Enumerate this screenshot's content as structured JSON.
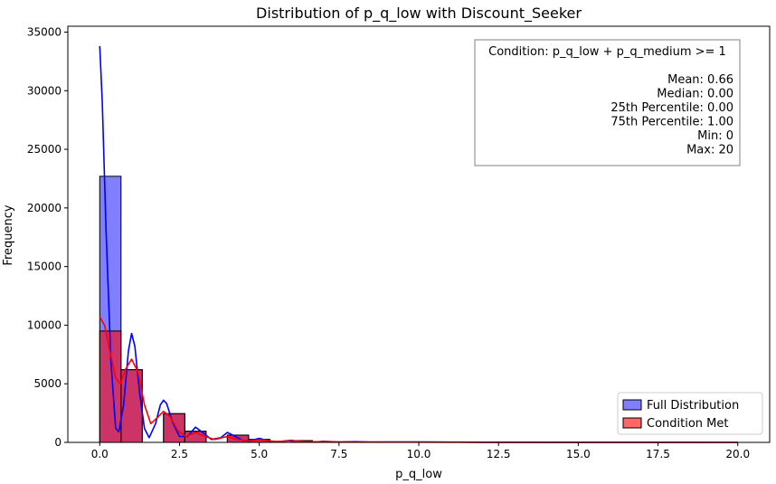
{
  "chart_data": {
    "type": "bar",
    "title": "Distribution of p_q_low with Discount_Seeker",
    "xlabel": "p_q_low",
    "ylabel": "Frequency",
    "xlim": [
      -1.0,
      21.0
    ],
    "ylim": [
      0,
      35500
    ],
    "xticks": [
      0.0,
      2.5,
      5.0,
      7.5,
      10.0,
      12.5,
      15.0,
      17.5,
      20.0
    ],
    "xtick_labels": [
      "0.0",
      "2.5",
      "5.0",
      "7.5",
      "10.0",
      "12.5",
      "15.0",
      "17.5",
      "20.0"
    ],
    "yticks": [
      0,
      5000,
      10000,
      15000,
      20000,
      25000,
      30000,
      35000
    ],
    "ytick_labels": [
      "0",
      "5000",
      "10000",
      "15000",
      "20000",
      "25000",
      "30000",
      "35000"
    ],
    "bin_edges": [
      0.0,
      0.667,
      1.333,
      2.0,
      2.667,
      3.333,
      4.0,
      4.667,
      5.333,
      6.0,
      6.667,
      7.333,
      8.0,
      8.667,
      9.333,
      10.0,
      10.667,
      11.333,
      12.0,
      12.667,
      13.333,
      14.0,
      14.667,
      15.333,
      16.0,
      16.667,
      17.333,
      18.0,
      18.667,
      19.333,
      20.0
    ],
    "series": [
      {
        "name": "Full Distribution",
        "color": "#0000ff",
        "values": [
          22700,
          6200,
          0,
          2450,
          950,
          0,
          620,
          250,
          0,
          150,
          60,
          0,
          40,
          20,
          0,
          15,
          10,
          0,
          8,
          5,
          0,
          4,
          3,
          0,
          2,
          2,
          0,
          1,
          1,
          2
        ],
        "kde": [
          [
            0.0,
            33800
          ],
          [
            0.08,
            29000
          ],
          [
            0.2,
            18000
          ],
          [
            0.35,
            7000
          ],
          [
            0.5,
            1200
          ],
          [
            0.6,
            900
          ],
          [
            0.75,
            3200
          ],
          [
            0.9,
            7800
          ],
          [
            1.0,
            9300
          ],
          [
            1.1,
            8200
          ],
          [
            1.25,
            4200
          ],
          [
            1.4,
            1200
          ],
          [
            1.55,
            400
          ],
          [
            1.75,
            1600
          ],
          [
            1.9,
            3200
          ],
          [
            2.0,
            3600
          ],
          [
            2.1,
            3300
          ],
          [
            2.3,
            1600
          ],
          [
            2.5,
            500
          ],
          [
            2.75,
            500
          ],
          [
            3.0,
            1300
          ],
          [
            3.2,
            900
          ],
          [
            3.5,
            250
          ],
          [
            3.8,
            400
          ],
          [
            4.0,
            850
          ],
          [
            4.25,
            500
          ],
          [
            4.5,
            150
          ],
          [
            4.8,
            200
          ],
          [
            5.0,
            350
          ],
          [
            5.3,
            120
          ],
          [
            5.6,
            60
          ],
          [
            6.0,
            180
          ],
          [
            6.3,
            60
          ],
          [
            6.8,
            30
          ],
          [
            7.0,
            90
          ],
          [
            7.5,
            30
          ],
          [
            8.0,
            60
          ],
          [
            8.5,
            20
          ],
          [
            9.0,
            40
          ],
          [
            10.0,
            30
          ],
          [
            11.0,
            20
          ],
          [
            12.0,
            15
          ],
          [
            13.0,
            12
          ],
          [
            14.0,
            10
          ],
          [
            15.0,
            8
          ],
          [
            16.0,
            6
          ],
          [
            17.0,
            5
          ],
          [
            18.0,
            4
          ],
          [
            19.0,
            3
          ],
          [
            20.0,
            3
          ]
        ]
      },
      {
        "name": "Condition Met",
        "color": "#ff0000",
        "values": [
          9500,
          6200,
          0,
          2450,
          950,
          0,
          620,
          250,
          0,
          150,
          60,
          0,
          40,
          20,
          0,
          15,
          10,
          0,
          8,
          5,
          0,
          4,
          3,
          0,
          2,
          2,
          0,
          1,
          1,
          2
        ],
        "kde": [
          [
            0.0,
            10700
          ],
          [
            0.15,
            10000
          ],
          [
            0.3,
            8000
          ],
          [
            0.5,
            5500
          ],
          [
            0.65,
            5000
          ],
          [
            0.8,
            6200
          ],
          [
            1.0,
            7100
          ],
          [
            1.2,
            6000
          ],
          [
            1.4,
            3200
          ],
          [
            1.6,
            1600
          ],
          [
            1.8,
            2100
          ],
          [
            2.0,
            2650
          ],
          [
            2.2,
            2200
          ],
          [
            2.45,
            1000
          ],
          [
            2.7,
            500
          ],
          [
            3.0,
            850
          ],
          [
            3.3,
            500
          ],
          [
            3.6,
            250
          ],
          [
            4.0,
            500
          ],
          [
            4.3,
            250
          ],
          [
            4.7,
            120
          ],
          [
            5.0,
            220
          ],
          [
            5.5,
            80
          ],
          [
            6.0,
            130
          ],
          [
            6.5,
            50
          ],
          [
            7.0,
            60
          ],
          [
            7.5,
            30
          ],
          [
            8.0,
            40
          ],
          [
            9.0,
            25
          ],
          [
            10.0,
            20
          ],
          [
            11.0,
            15
          ],
          [
            12.0,
            10
          ],
          [
            14.0,
            8
          ],
          [
            16.0,
            6
          ],
          [
            18.0,
            4
          ],
          [
            20.0,
            3
          ]
        ]
      }
    ],
    "legend": {
      "placement": "lower-right",
      "entries": [
        {
          "label": "Full Distribution",
          "color": "#7f7fff"
        },
        {
          "label": "Condition Met",
          "color": "#ff6666"
        }
      ]
    },
    "annotation": {
      "placement": "top-right",
      "lines": [
        "Condition: p_q_low + p_q_medium >= 1",
        "",
        "Mean: 0.66",
        "Median: 0.00",
        "25th Percentile: 0.00",
        "75th Percentile: 1.00",
        "Min: 0",
        "Max: 20"
      ]
    },
    "grid": false
  }
}
